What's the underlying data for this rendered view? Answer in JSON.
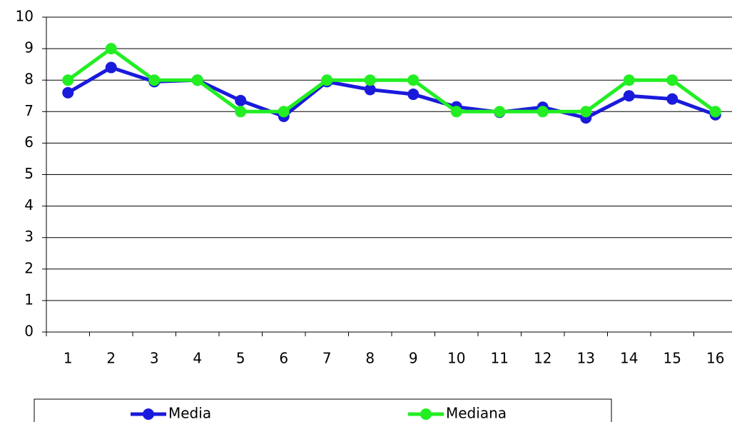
{
  "chart_data": {
    "type": "line",
    "categories": [
      "1",
      "2",
      "3",
      "4",
      "5",
      "6",
      "7",
      "8",
      "9",
      "10",
      "11",
      "12",
      "13",
      "14",
      "15",
      "16"
    ],
    "series": [
      {
        "name": "Media",
        "color": "#1a1adc",
        "values": [
          7.6,
          8.4,
          7.95,
          8.0,
          7.35,
          6.85,
          7.95,
          7.7,
          7.55,
          7.15,
          6.98,
          7.14,
          6.8,
          7.5,
          7.4,
          6.9
        ]
      },
      {
        "name": "Mediana",
        "color": "#22ee22",
        "values": [
          8,
          9,
          8,
          8,
          7,
          7,
          8,
          8,
          8,
          7,
          7,
          7,
          7,
          8,
          8,
          7
        ]
      }
    ],
    "ylim": [
      0,
      10
    ],
    "yticks": [
      0,
      1,
      2,
      3,
      4,
      5,
      6,
      7,
      8,
      9,
      10
    ],
    "grid": true,
    "legend": "bottom"
  }
}
